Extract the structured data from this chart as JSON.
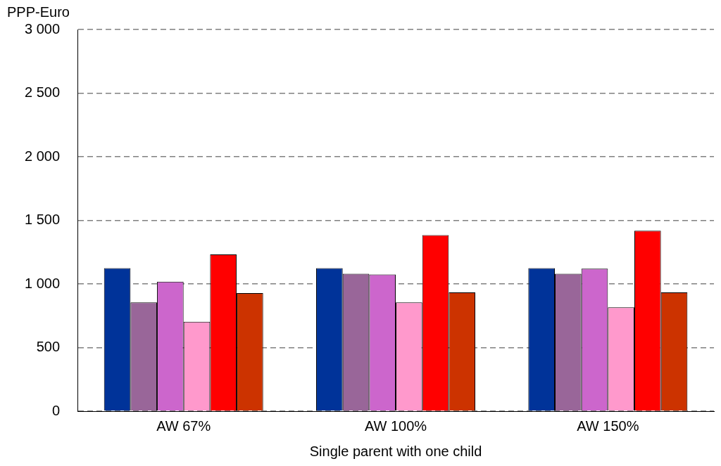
{
  "chart_data": {
    "type": "bar",
    "ylabel": "PPP-Euro",
    "xlabel": "Single parent with one child",
    "categories": [
      "AW 67%",
      "AW 100%",
      "AW 150%"
    ],
    "series": [
      {
        "color": "#003399",
        "values": [
          1125,
          1125,
          1125
        ]
      },
      {
        "color": "#996699",
        "values": [
          855,
          1080,
          1080
        ]
      },
      {
        "color": "#cc66cc",
        "values": [
          1018,
          1075,
          1120
        ]
      },
      {
        "color": "#ff99cc",
        "values": [
          703,
          855,
          816
        ]
      },
      {
        "color": "#ff0000",
        "values": [
          1232,
          1384,
          1418
        ]
      },
      {
        "color": "#cc3300",
        "values": [
          928,
          934,
          934
        ]
      }
    ],
    "ylim": [
      0,
      3000
    ],
    "yticks": [
      {
        "value": 0,
        "label": "0"
      },
      {
        "value": 500,
        "label": "500"
      },
      {
        "value": 1000,
        "label": "1 000"
      },
      {
        "value": 1500,
        "label": "1 500"
      },
      {
        "value": 2000,
        "label": "2 000"
      },
      {
        "value": 2500,
        "label": "2 500"
      },
      {
        "value": 3000,
        "label": "3 000"
      }
    ],
    "grid": "y",
    "legend": false
  }
}
